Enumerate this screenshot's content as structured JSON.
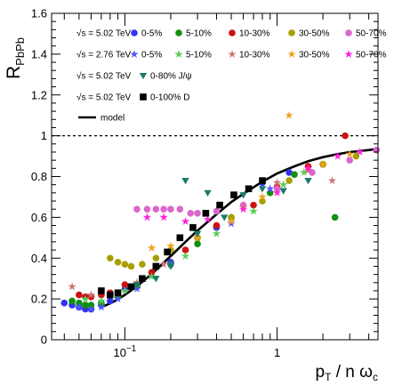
{
  "chart_data": {
    "type": "scatter",
    "title": "",
    "xlabel": {
      "main": "p",
      "sub1": "T",
      "middle": " / n ω",
      "sub2": "c"
    },
    "ylabel": {
      "main": "R",
      "sub": "PbPb"
    },
    "x_scale": "log",
    "xlim": [
      0.033,
      4.6
    ],
    "ylim": [
      0,
      1.6
    ],
    "x_ticks": [
      {
        "value": 0.1,
        "base": "10",
        "exp": "−1"
      },
      {
        "value": 1,
        "base": "1",
        "exp": ""
      }
    ],
    "y_ticks": [
      0,
      0.2,
      0.4,
      0.6,
      0.8,
      1,
      1.2,
      1.4,
      1.6
    ],
    "y_tick_labels": [
      "0",
      "0.2",
      "0.4",
      "0.6",
      "0.8",
      "1",
      "1.2",
      "1.4",
      "1.6"
    ],
    "reference_line": {
      "y": 1,
      "style": "dashed"
    },
    "legend": {
      "placement": "top-left",
      "rows": [
        {
          "label": "√s = 5.02 TeV",
          "entries": [
            {
              "text": "0-5%",
              "color": "#3333ee",
              "marker": "circle"
            },
            {
              "text": "5-10%",
              "color": "#109010",
              "marker": "circle"
            },
            {
              "text": "10-30%",
              "color": "#cc1111",
              "marker": "circle"
            },
            {
              "text": "30-50%",
              "color": "#a8a000",
              "marker": "circle"
            },
            {
              "text": "50-70%",
              "color": "#dd66cc",
              "marker": "circle"
            }
          ]
        },
        {
          "label": "√s = 2.76 TeV",
          "entries": [
            {
              "text": "0-5%",
              "color": "#5555ff",
              "marker": "star"
            },
            {
              "text": "5-10%",
              "color": "#55cc55",
              "marker": "star"
            },
            {
              "text": "10-30%",
              "color": "#cc7777",
              "marker": "star"
            },
            {
              "text": "30-50%",
              "color": "#f0a020",
              "marker": "star"
            },
            {
              "text": "50-70%",
              "color": "#ff22dd",
              "marker": "star"
            }
          ]
        },
        {
          "label": "√s = 5.02 TeV",
          "entries": [
            {
              "text": "0-80% J/ψ",
              "color": "#1a7a6a",
              "marker": "triangle-down"
            }
          ]
        },
        {
          "label": "√s = 5.02 TeV",
          "entries": [
            {
              "text": "0-100% D",
              "color": "#000000",
              "marker": "square"
            }
          ]
        },
        {
          "label": "",
          "entries": [
            {
              "text": "model",
              "color": "#000000",
              "marker": "line"
            }
          ]
        }
      ]
    },
    "model": {
      "name": "model",
      "x": [
        0.07,
        0.08,
        0.09,
        0.1,
        0.12,
        0.15,
        0.2,
        0.25,
        0.3,
        0.4,
        0.5,
        0.6,
        0.8,
        1.0,
        1.3,
        1.6,
        2.0,
        2.5,
        3.0,
        3.5,
        4.0,
        4.6
      ],
      "y": [
        0.16,
        0.178,
        0.198,
        0.22,
        0.262,
        0.322,
        0.41,
        0.48,
        0.535,
        0.615,
        0.675,
        0.715,
        0.775,
        0.815,
        0.85,
        0.875,
        0.895,
        0.91,
        0.92,
        0.925,
        0.93,
        0.935
      ]
    },
    "series": [
      {
        "name": "5.02 TeV 0-5%",
        "color": "#3333ee",
        "marker": "circle",
        "x": [
          0.04,
          0.045,
          0.05,
          0.055,
          0.06,
          0.07,
          0.08,
          0.1,
          0.2,
          0.4,
          0.8,
          1.2
        ],
        "y": [
          0.18,
          0.17,
          0.16,
          0.15,
          0.15,
          0.17,
          0.19,
          0.25,
          0.38,
          0.55,
          0.77,
          0.82
        ]
      },
      {
        "name": "5.02 TeV 5-10%",
        "color": "#109010",
        "marker": "circle",
        "x": [
          0.045,
          0.05,
          0.055,
          0.06,
          0.07,
          0.09,
          0.12,
          0.2,
          0.3,
          0.5,
          0.9,
          1.3,
          2.0,
          2.4
        ],
        "y": [
          0.19,
          0.18,
          0.17,
          0.17,
          0.18,
          0.21,
          0.26,
          0.37,
          0.47,
          0.6,
          0.72,
          0.81,
          0.86,
          0.6
        ]
      },
      {
        "name": "5.02 TeV 10-30%",
        "color": "#cc1111",
        "marker": "circle",
        "x": [
          0.05,
          0.055,
          0.06,
          0.07,
          0.08,
          0.1,
          0.15,
          0.25,
          0.4,
          0.7,
          1.0,
          1.6,
          2.8
        ],
        "y": [
          0.22,
          0.21,
          0.21,
          0.22,
          0.23,
          0.27,
          0.33,
          0.44,
          0.56,
          0.66,
          0.75,
          0.85,
          1.0
        ]
      },
      {
        "name": "5.02 TeV 30-50%",
        "color": "#a8a000",
        "marker": "circle",
        "x": [
          0.08,
          0.09,
          0.1,
          0.11,
          0.13,
          0.16,
          0.2,
          0.3,
          0.5,
          0.8,
          1.2,
          2.0,
          3.3
        ],
        "y": [
          0.4,
          0.38,
          0.37,
          0.36,
          0.37,
          0.4,
          0.44,
          0.5,
          0.6,
          0.68,
          0.78,
          0.86,
          0.9
        ]
      },
      {
        "name": "5.02 TeV 50-70%",
        "color": "#dd66cc",
        "marker": "circle",
        "x": [
          0.12,
          0.14,
          0.16,
          0.18,
          0.2,
          0.23,
          0.27,
          0.3,
          0.4,
          0.6,
          1.0,
          1.7,
          3.0,
          4.5
        ],
        "y": [
          0.64,
          0.64,
          0.64,
          0.64,
          0.64,
          0.64,
          0.62,
          0.62,
          0.63,
          0.66,
          0.74,
          0.82,
          0.88,
          0.93
        ]
      },
      {
        "name": "2.76 TeV 0-5%",
        "color": "#5555ff",
        "marker": "star",
        "x": [
          0.05,
          0.06,
          0.07,
          0.09,
          0.12,
          0.2,
          0.5,
          0.9
        ],
        "y": [
          0.16,
          0.15,
          0.16,
          0.2,
          0.25,
          0.37,
          0.57,
          0.74
        ]
      },
      {
        "name": "2.76 TeV 5-10%",
        "color": "#55cc55",
        "marker": "star",
        "x": [
          0.055,
          0.07,
          0.1,
          0.15,
          0.25,
          0.4,
          0.7,
          1.1,
          1.5
        ],
        "y": [
          0.2,
          0.19,
          0.24,
          0.31,
          0.41,
          0.52,
          0.63,
          0.76,
          0.82
        ]
      },
      {
        "name": "2.76 TeV 10-30%",
        "color": "#cc7777",
        "marker": "star",
        "x": [
          0.045,
          0.06,
          0.08,
          0.12,
          0.18,
          0.3,
          0.6,
          1.0,
          1.6,
          2.3
        ],
        "y": [
          0.26,
          0.22,
          0.22,
          0.28,
          0.37,
          0.5,
          0.65,
          0.77,
          0.83,
          0.78
        ]
      },
      {
        "name": "2.76 TeV 30-50%",
        "color": "#f0a020",
        "marker": "star",
        "x": [
          0.15,
          0.2,
          0.3,
          0.5,
          0.8,
          1.2,
          2.0,
          3.0
        ],
        "y": [
          0.45,
          0.46,
          0.5,
          0.58,
          0.7,
          1.1,
          0.86,
          0.91
        ]
      },
      {
        "name": "2.76 TeV 50-70%",
        "color": "#ff22dd",
        "marker": "star",
        "x": [
          0.14,
          0.18,
          0.25,
          0.35,
          0.6,
          1.0,
          1.6,
          2.5,
          3.5
        ],
        "y": [
          0.6,
          0.6,
          0.58,
          0.59,
          0.64,
          0.72,
          0.84,
          0.9,
          0.92
        ]
      },
      {
        "name": "5.02 TeV 0-80% J/ψ",
        "color": "#1a7a6a",
        "marker": "triangle-down",
        "x": [
          0.12,
          0.16,
          0.2,
          0.25,
          0.3,
          0.35,
          0.45,
          0.6,
          0.8,
          1.1,
          1.6
        ],
        "y": [
          0.27,
          0.3,
          0.36,
          0.78,
          0.52,
          0.72,
          0.6,
          0.71,
          0.74,
          0.73,
          0.78
        ]
      },
      {
        "name": "5.02 TeV 0-100% D",
        "color": "#000000",
        "marker": "square",
        "x": [
          0.07,
          0.08,
          0.09,
          0.11,
          0.13,
          0.16,
          0.19,
          0.23,
          0.28,
          0.34,
          0.42,
          0.52,
          0.65,
          0.8
        ],
        "y": [
          0.24,
          0.22,
          0.23,
          0.26,
          0.3,
          0.36,
          0.43,
          0.5,
          0.55,
          0.62,
          0.66,
          0.71,
          0.74,
          0.78
        ]
      }
    ]
  }
}
